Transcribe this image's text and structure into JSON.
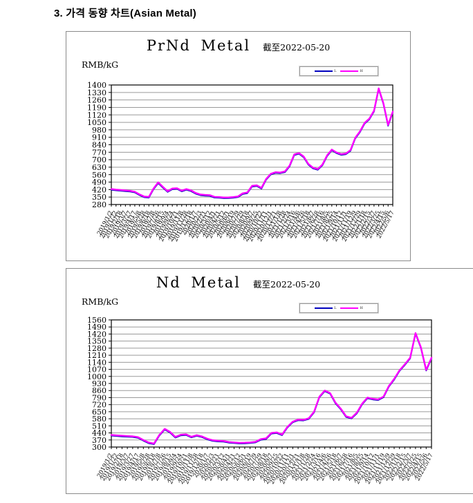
{
  "page": {
    "heading": "3. 가격 동향 차트(Asian Metal)"
  },
  "chart_data": [
    {
      "type": "line",
      "title": "PrNd Metal",
      "subtitle": "截至2022-05-20",
      "ylabel": "RMB/kG",
      "ylim": [
        280,
        1400
      ],
      "y_tick_step": 70,
      "grid": true,
      "legend_position": "top-right",
      "y_ticks": [
        1400,
        1330,
        1260,
        1190,
        1120,
        1050,
        980,
        910,
        840,
        770,
        700,
        630,
        560,
        490,
        420,
        350,
        280
      ],
      "x": [
        "2019/1/2",
        "2019/1/22",
        "2019/2/18",
        "2019/3/7",
        "2019/3/27",
        "2019/4/17",
        "2019/5/8",
        "2019/5/28",
        "2019/6/18",
        "2019/7/8",
        "2019/7/26",
        "2019/8/15",
        "2019/9/4",
        "2019/9/24",
        "2019/10/21",
        "2019/11/8",
        "2019/11/28",
        "2019/12/18",
        "2020/1/7",
        "2020/2/3",
        "2020/2/21",
        "2020/3/12",
        "2020/4/1",
        "2020/4/21",
        "2020/5/12",
        "2020/6/1",
        "2020/6/19",
        "2020/7/9",
        "2020/7/29",
        "2020/8/18",
        "2020/9/7",
        "2020/9/25",
        "2020/10/22",
        "2020/11/11",
        "2020/12/1",
        "2020/12/21",
        "2021/1/8",
        "2021/1/28",
        "2021/2/24",
        "2021/3/16",
        "2021/4/6",
        "2021/4/26",
        "2021/5/18",
        "2021/6/7",
        "2021/6/28",
        "2021/7/16",
        "2021/8/5",
        "2021/8/25",
        "2021/9/14",
        "2021/10/12",
        "2021/11/1",
        "2021/11/19",
        "2021/12/9",
        "2021/12/29",
        "2022/1/18",
        "2022/2/15",
        "2022/3/7",
        "2022/3/25",
        "2022/4/15",
        "2022/5/6",
        "2022/5/17"
      ],
      "series": [
        {
          "name": "L",
          "color": "#0000BE",
          "values": [
            418,
            413,
            409,
            405,
            401,
            393,
            368,
            348,
            345,
            423,
            481,
            438,
            398,
            423,
            426,
            403,
            418,
            405,
            381,
            367,
            363,
            361,
            345,
            343,
            339,
            340,
            343,
            349,
            378,
            386,
            448,
            453,
            429,
            513,
            561,
            576,
            573,
            583,
            638,
            743,
            755,
            723,
            653,
            618,
            605,
            648,
            733,
            788,
            761,
            745,
            751,
            783,
            898,
            958,
            1038,
            1078,
            1153,
            1361,
            1223,
            1018,
            1143
          ]
        },
        {
          "name": "H",
          "color": "#FF00FF",
          "values": [
            425,
            420,
            416,
            412,
            408,
            400,
            375,
            355,
            352,
            430,
            488,
            445,
            405,
            430,
            433,
            410,
            425,
            412,
            388,
            374,
            370,
            368,
            352,
            350,
            346,
            347,
            350,
            356,
            385,
            393,
            455,
            460,
            436,
            520,
            568,
            583,
            580,
            590,
            645,
            750,
            762,
            730,
            660,
            625,
            612,
            655,
            740,
            795,
            768,
            752,
            758,
            790,
            905,
            965,
            1045,
            1085,
            1160,
            1368,
            1230,
            1025,
            1150
          ]
        }
      ]
    },
    {
      "type": "line",
      "title": "Nd Metal",
      "subtitle": "截至2022-05-20",
      "ylabel": "RMB/kG",
      "ylim": [
        300,
        1560
      ],
      "y_tick_step": 70,
      "grid": true,
      "legend_position": "top-right",
      "y_ticks": [
        1560,
        1490,
        1420,
        1350,
        1280,
        1210,
        1140,
        1070,
        1000,
        930,
        860,
        790,
        720,
        650,
        580,
        510,
        440,
        370,
        300
      ],
      "x": [
        "2019/1/2",
        "2019/1/22",
        "2019/2/18",
        "2019/3/7",
        "2019/3/27",
        "2019/4/17",
        "2019/5/8",
        "2019/5/28",
        "2019/6/18",
        "2019/7/8",
        "2019/7/26",
        "2019/8/15",
        "2019/9/4",
        "2019/9/24",
        "2019/10/21",
        "2019/11/8",
        "2019/11/28",
        "2019/12/18",
        "2020/1/7",
        "2020/2/3",
        "2020/2/21",
        "2020/3/12",
        "2020/4/1",
        "2020/4/21",
        "2020/5/12",
        "2020/6/1",
        "2020/6/19",
        "2020/7/9",
        "2020/7/29",
        "2020/8/18",
        "2020/9/7",
        "2020/9/25",
        "2020/10/22",
        "2020/11/11",
        "2020/12/1",
        "2020/12/21",
        "2021/1/8",
        "2021/1/28",
        "2021/2/24",
        "2021/3/16",
        "2021/4/6",
        "2021/4/26",
        "2021/5/18",
        "2021/6/7",
        "2021/6/28",
        "2021/7/16",
        "2021/8/5",
        "2021/8/25",
        "2021/9/14",
        "2021/10/12",
        "2021/11/1",
        "2021/11/19",
        "2021/12/9",
        "2021/12/29",
        "2022/1/18",
        "2022/2/15",
        "2022/3/7",
        "2022/3/25",
        "2022/4/15",
        "2022/5/6",
        "2022/5/17"
      ],
      "series": [
        {
          "name": "L",
          "color": "#0000BE",
          "values": [
            413,
            409,
            405,
            402,
            399,
            391,
            363,
            338,
            328,
            413,
            473,
            443,
            393,
            415,
            419,
            395,
            411,
            398,
            375,
            361,
            355,
            353,
            343,
            339,
            335,
            336,
            339,
            345,
            371,
            379,
            433,
            438,
            417,
            493,
            545,
            565,
            563,
            578,
            643,
            793,
            853,
            828,
            733,
            673,
            598,
            583,
            633,
            723,
            783,
            771,
            765,
            793,
            898,
            968,
            1053,
            1113,
            1178,
            1423,
            1283,
            1058,
            1178
          ]
        },
        {
          "name": "H",
          "color": "#FF00FF",
          "values": [
            420,
            416,
            412,
            409,
            406,
            398,
            370,
            345,
            335,
            420,
            480,
            450,
            400,
            422,
            426,
            402,
            418,
            405,
            382,
            368,
            362,
            360,
            350,
            346,
            342,
            343,
            346,
            352,
            378,
            386,
            440,
            445,
            424,
            500,
            552,
            572,
            570,
            585,
            650,
            800,
            860,
            835,
            740,
            680,
            605,
            590,
            640,
            730,
            790,
            778,
            772,
            800,
            905,
            975,
            1060,
            1120,
            1185,
            1430,
            1290,
            1065,
            1185
          ]
        }
      ]
    }
  ]
}
